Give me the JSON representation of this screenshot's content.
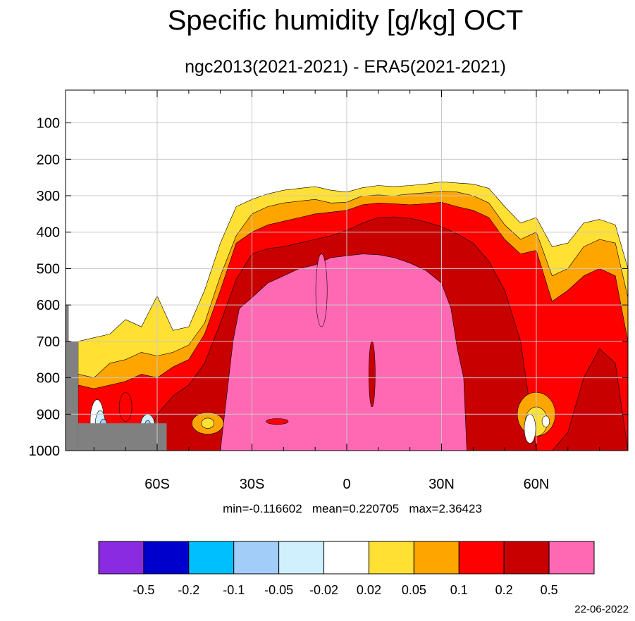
{
  "chart_data": {
    "type": "heatmap",
    "plot_kind": "filled-contour",
    "title": "Specific humidity [g/kg] OCT",
    "subtitle": "ngc2013(2021-2021) - ERA5(2021-2021)",
    "x_ticks": [
      "60S",
      "30S",
      "0",
      "30N",
      "60N"
    ],
    "x_tick_values": [
      -60,
      -30,
      0,
      30,
      60
    ],
    "xlim": [
      -89,
      89
    ],
    "y_ticks": [
      "100",
      "200",
      "300",
      "400",
      "500",
      "600",
      "700",
      "800",
      "900",
      "1000"
    ],
    "y_tick_values": [
      100,
      200,
      300,
      400,
      500,
      600,
      700,
      800,
      900,
      1000
    ],
    "ylim": [
      10,
      1000
    ],
    "y_reversed": true,
    "grid": true,
    "stats": "min=-0.116602   mean=0.220705   max=2.36423",
    "colorbar": {
      "colors": [
        "#8a2be2",
        "#0000cd",
        "#00bfff",
        "#a2cdf9",
        "#d0f0fd",
        "#ffffff",
        "#ffe033",
        "#ffa500",
        "#ff0000",
        "#c80000",
        "#ff69b4"
      ],
      "labels": [
        "-0.5",
        "-0.2",
        "-0.1",
        "-0.05",
        "-0.02",
        "0.02",
        "0.05",
        "0.1",
        "0.2",
        "0.5"
      ]
    },
    "missing_color": "#808080",
    "date": "22-06-2022",
    "levels": [
      {
        "fill": "#ffe033",
        "top": [
          [
            -85,
            700
          ],
          [
            -80,
            690
          ],
          [
            -75,
            680
          ],
          [
            -70,
            640
          ],
          [
            -65,
            660
          ],
          [
            -60,
            575
          ],
          [
            -55,
            670
          ],
          [
            -50,
            660
          ],
          [
            -45,
            560
          ],
          [
            -40,
            430
          ],
          [
            -35,
            330
          ],
          [
            -30,
            310
          ],
          [
            -25,
            295
          ],
          [
            -20,
            285
          ],
          [
            -15,
            280
          ],
          [
            -10,
            275
          ],
          [
            -5,
            285
          ],
          [
            0,
            290
          ],
          [
            5,
            278
          ],
          [
            10,
            272
          ],
          [
            15,
            275
          ],
          [
            20,
            272
          ],
          [
            25,
            268
          ],
          [
            30,
            262
          ],
          [
            35,
            265
          ],
          [
            40,
            268
          ],
          [
            45,
            280
          ],
          [
            50,
            330
          ],
          [
            55,
            375
          ],
          [
            60,
            360
          ],
          [
            65,
            440
          ],
          [
            70,
            430
          ],
          [
            75,
            375
          ],
          [
            80,
            365
          ],
          [
            85,
            380
          ],
          [
            89,
            500
          ]
        ]
      },
      {
        "fill": "#ffa500",
        "top": [
          [
            -85,
            790
          ],
          [
            -80,
            800
          ],
          [
            -75,
            760
          ],
          [
            -70,
            750
          ],
          [
            -65,
            730
          ],
          [
            -60,
            740
          ],
          [
            -55,
            730
          ],
          [
            -50,
            710
          ],
          [
            -45,
            650
          ],
          [
            -40,
            520
          ],
          [
            -35,
            410
          ],
          [
            -30,
            350
          ],
          [
            -25,
            330
          ],
          [
            -20,
            320
          ],
          [
            -15,
            315
          ],
          [
            -10,
            310
          ],
          [
            -5,
            320
          ],
          [
            0,
            318
          ],
          [
            5,
            300
          ],
          [
            10,
            298
          ],
          [
            15,
            300
          ],
          [
            20,
            295
          ],
          [
            25,
            292
          ],
          [
            30,
            288
          ],
          [
            35,
            290
          ],
          [
            40,
            300
          ],
          [
            45,
            320
          ],
          [
            50,
            380
          ],
          [
            55,
            420
          ],
          [
            60,
            400
          ],
          [
            65,
            520
          ],
          [
            70,
            500
          ],
          [
            75,
            440
          ],
          [
            80,
            420
          ],
          [
            85,
            430
          ],
          [
            89,
            580
          ]
        ]
      },
      {
        "fill": "#ff0000",
        "top": [
          [
            -85,
            820
          ],
          [
            -80,
            830
          ],
          [
            -75,
            820
          ],
          [
            -70,
            810
          ],
          [
            -65,
            790
          ],
          [
            -60,
            800
          ],
          [
            -55,
            770
          ],
          [
            -50,
            750
          ],
          [
            -45,
            680
          ],
          [
            -40,
            560
          ],
          [
            -35,
            430
          ],
          [
            -30,
            400
          ],
          [
            -25,
            380
          ],
          [
            -20,
            370
          ],
          [
            -15,
            360
          ],
          [
            -10,
            350
          ],
          [
            -5,
            345
          ],
          [
            0,
            340
          ],
          [
            5,
            325
          ],
          [
            10,
            320
          ],
          [
            15,
            322
          ],
          [
            20,
            325
          ],
          [
            25,
            322
          ],
          [
            30,
            318
          ],
          [
            35,
            330
          ],
          [
            40,
            340
          ],
          [
            45,
            360
          ],
          [
            50,
            420
          ],
          [
            55,
            460
          ],
          [
            60,
            450
          ],
          [
            65,
            590
          ],
          [
            70,
            560
          ],
          [
            75,
            520
          ],
          [
            80,
            500
          ],
          [
            85,
            520
          ],
          [
            89,
            700
          ]
        ]
      },
      {
        "fill": "#c80000",
        "top": [
          [
            -65,
            1000
          ],
          [
            -60,
            900
          ],
          [
            -55,
            850
          ],
          [
            -50,
            820
          ],
          [
            -45,
            760
          ],
          [
            -40,
            650
          ],
          [
            -35,
            530
          ],
          [
            -30,
            460
          ],
          [
            -25,
            445
          ],
          [
            -20,
            440
          ],
          [
            -15,
            430
          ],
          [
            -10,
            420
          ],
          [
            -5,
            410
          ],
          [
            0,
            395
          ],
          [
            5,
            375
          ],
          [
            10,
            360
          ],
          [
            15,
            358
          ],
          [
            20,
            362
          ],
          [
            25,
            372
          ],
          [
            30,
            385
          ],
          [
            35,
            405
          ],
          [
            40,
            430
          ],
          [
            45,
            480
          ],
          [
            50,
            560
          ],
          [
            55,
            700
          ],
          [
            60,
            1000
          ],
          [
            65,
            1000
          ],
          [
            70,
            950
          ],
          [
            75,
            800
          ],
          [
            80,
            720
          ],
          [
            85,
            760
          ],
          [
            89,
            1000
          ]
        ]
      },
      {
        "fill": "#ff69b4",
        "top": [
          [
            -40,
            1000
          ],
          [
            -36,
            700
          ],
          [
            -34,
            610
          ],
          [
            -30,
            580
          ],
          [
            -25,
            540
          ],
          [
            -20,
            520
          ],
          [
            -15,
            500
          ],
          [
            -10,
            490
          ],
          [
            -5,
            470
          ],
          [
            0,
            465
          ],
          [
            5,
            460
          ],
          [
            10,
            462
          ],
          [
            15,
            470
          ],
          [
            20,
            485
          ],
          [
            25,
            505
          ],
          [
            30,
            540
          ],
          [
            33,
            610
          ],
          [
            35,
            720
          ],
          [
            37,
            800
          ],
          [
            38,
            1000
          ]
        ]
      }
    ],
    "blobs": [
      {
        "fill": "#ffffff",
        "cx": -79,
        "cy": 920,
        "rx": 2.2,
        "ry": 60
      },
      {
        "fill": "#d0f0fd",
        "cx": -78,
        "cy": 930,
        "rx": 1.6,
        "ry": 40
      },
      {
        "fill": "#a2cdf9",
        "cx": -77,
        "cy": 935,
        "rx": 1.2,
        "ry": 22
      },
      {
        "fill": "#ff0000",
        "cx": -70,
        "cy": 880,
        "rx": 2.0,
        "ry": 40
      },
      {
        "fill": "#d0f0fd",
        "cx": -63,
        "cy": 930,
        "rx": 2.2,
        "ry": 30
      },
      {
        "fill": "#a2cdf9",
        "cx": -63,
        "cy": 935,
        "rx": 1.0,
        "ry": 18
      },
      {
        "fill": "#ffa500",
        "cx": -44,
        "cy": 925,
        "rx": 5.0,
        "ry": 30
      },
      {
        "fill": "#ffe033",
        "cx": -44,
        "cy": 925,
        "rx": 2.0,
        "ry": 14
      },
      {
        "fill": "#ff0000",
        "cx": -22,
        "cy": 920,
        "rx": 3.5,
        "ry": 8
      },
      {
        "fill": "#c80000",
        "cx": 8,
        "cy": 790,
        "rx": 1.0,
        "ry": 90
      },
      {
        "fill": "#ff69b4",
        "cx": -8,
        "cy": 560,
        "rx": 1.8,
        "ry": 100
      },
      {
        "fill": "#ffa500",
        "cx": 60,
        "cy": 900,
        "rx": 6.0,
        "ry": 60
      },
      {
        "fill": "#ffe033",
        "cx": 60,
        "cy": 920,
        "rx": 3.5,
        "ry": 40
      },
      {
        "fill": "#ffffff",
        "cx": 58,
        "cy": 940,
        "rx": 1.8,
        "ry": 40
      },
      {
        "fill": "#ffffff",
        "cx": 63,
        "cy": 920,
        "rx": 1.2,
        "ry": 15
      }
    ],
    "masks": [
      {
        "x0": -89,
        "x1": -88,
        "p0": 600,
        "p1": 1000
      },
      {
        "x0": -88,
        "x1": -85,
        "p0": 700,
        "p1": 1000
      },
      {
        "x0": -85,
        "x1": -57,
        "p0": 925,
        "p1": 1000
      }
    ]
  }
}
